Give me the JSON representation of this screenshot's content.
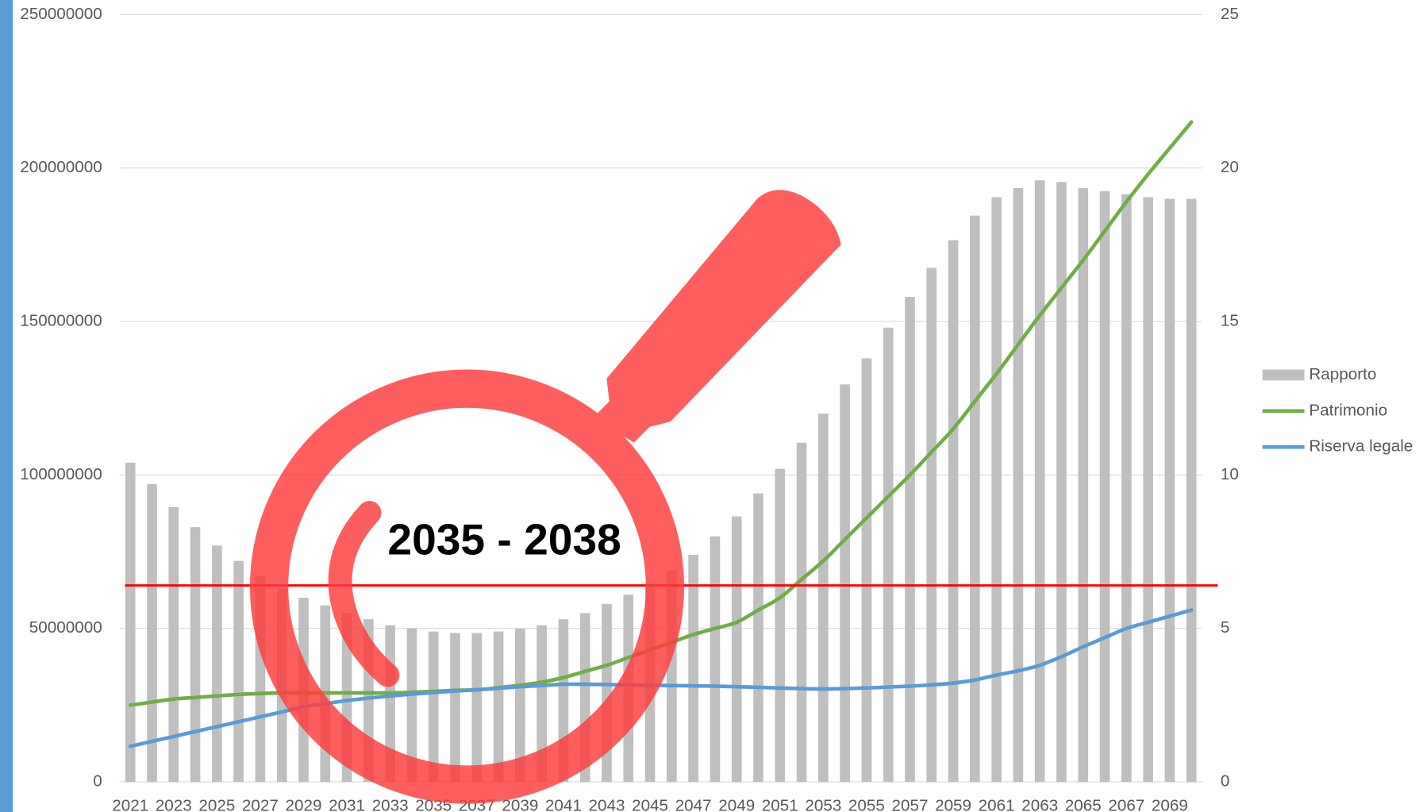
{
  "chart_data": {
    "type": "bar",
    "categories": [
      "2021",
      null,
      "2023",
      null,
      "2025",
      null,
      "2027",
      null,
      "2029",
      null,
      "2031",
      null,
      "2033",
      null,
      "2035",
      null,
      "2037",
      null,
      "2039",
      null,
      "2041",
      null,
      "2043",
      null,
      "2045",
      null,
      "2047",
      null,
      "2049",
      null,
      "2051",
      null,
      "2053",
      null,
      "2055",
      null,
      "2057",
      null,
      "2059",
      null,
      "2061",
      null,
      "2063",
      null,
      "2065",
      null,
      "2067",
      null,
      "2069",
      null
    ],
    "series": [
      {
        "name": "Rapporto",
        "type": "bar",
        "axis": "y2",
        "color": "#bfbfbf",
        "values": [
          10.4,
          9.7,
          8.95,
          8.3,
          7.7,
          7.2,
          6.7,
          6.3,
          6.0,
          5.75,
          5.5,
          5.3,
          5.1,
          5.0,
          4.9,
          4.85,
          4.85,
          4.9,
          5.0,
          5.1,
          5.3,
          5.5,
          5.8,
          6.1,
          6.45,
          6.9,
          7.4,
          8.0,
          8.65,
          9.4,
          10.2,
          11.05,
          12.0,
          12.95,
          13.8,
          14.8,
          15.8,
          16.75,
          17.65,
          18.45,
          19.05,
          19.35,
          19.6,
          19.55,
          19.35,
          19.25,
          19.15,
          19.05,
          19.0,
          19.0
        ]
      },
      {
        "name": "Patrimonio",
        "type": "line",
        "color": "#70ad47",
        "values": [
          25000000,
          26000000,
          27000000,
          27500000,
          28000000,
          28500000,
          28800000,
          29000000,
          29000000,
          29000000,
          29000000,
          29000000,
          29000000,
          29200000,
          29500000,
          29800000,
          30000000,
          30700000,
          31500000,
          32500000,
          34000000,
          36000000,
          38000000,
          40500000,
          43000000,
          45500000,
          48000000,
          50000000,
          52000000,
          56000000,
          60000000,
          66000000,
          72000000,
          79000000,
          86000000,
          93000000,
          100000000,
          107500000,
          115000000,
          124000000,
          133000000,
          142500000,
          152000000,
          161000000,
          170000000,
          179500000,
          189000000,
          198000000,
          206500000,
          215000000
        ]
      },
      {
        "name": "Riserva legale",
        "type": "line",
        "color": "#5b9bd5",
        "values": [
          11600000,
          13200000,
          14800000,
          16400000,
          18000000,
          19600000,
          21200000,
          22800000,
          24500000,
          25500000,
          26500000,
          27300000,
          28000000,
          28600000,
          29100000,
          29600000,
          30000000,
          30500000,
          31000000,
          31400000,
          31800000,
          31800000,
          31700000,
          31600000,
          31500000,
          31400000,
          31300000,
          31200000,
          31000000,
          30800000,
          30600000,
          30400000,
          30300000,
          30400000,
          30600000,
          30900000,
          31200000,
          31600000,
          32200000,
          33200000,
          34800000,
          36200000,
          38000000,
          40800000,
          44000000,
          47000000,
          50000000,
          52000000,
          54000000,
          56000000
        ]
      }
    ],
    "ylim": [
      0,
      250000000
    ],
    "yticks": [
      0,
      50000000,
      100000000,
      150000000,
      200000000,
      250000000
    ],
    "y2lim": [
      0,
      25
    ],
    "y2ticks": [
      0,
      5,
      10,
      15,
      20,
      25
    ],
    "grid": true,
    "legend": "right",
    "reference_line": {
      "value": 64000000,
      "color": "#ff0000"
    },
    "annotation": "2035 - 2038"
  }
}
